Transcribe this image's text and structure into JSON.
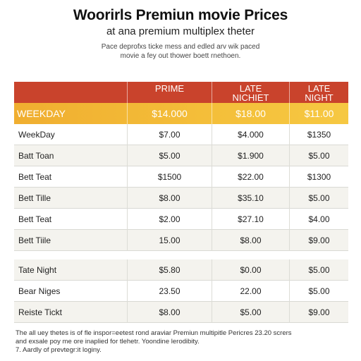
{
  "header": {
    "title": "Woorirls Premiun movie Prices",
    "subtitle": "at ana premium multiplex theter",
    "description": [
      "Pace deprofxs ticke mess and edled arv wik paced",
      "movie a fey out thower boett rnethoen."
    ]
  },
  "table": {
    "columns": [
      {
        "lines": [
          ""
        ]
      },
      {
        "lines": [
          "PRIME"
        ]
      },
      {
        "lines": [
          "LATE",
          "NICHIET"
        ]
      },
      {
        "lines": [
          "LATE",
          "NIGHT"
        ]
      }
    ],
    "weekday_row": {
      "label": "WEEKDAY",
      "values": [
        "$14.000",
        "$18.00",
        "$11.00"
      ]
    },
    "group1": [
      {
        "label": "WeekDay",
        "values": [
          "$7.00",
          "$4.000",
          "$1350"
        ]
      },
      {
        "label": "Batt Toan",
        "values": [
          "$5.00",
          "$1.900",
          "$5.00"
        ]
      },
      {
        "label": "Bett Teat",
        "values": [
          "$1500",
          "$22.00",
          "$1300"
        ]
      },
      {
        "label": "Bett Tille",
        "values": [
          "$8.00",
          "$35.10",
          "$5.00"
        ]
      },
      {
        "label": "Bett Teat",
        "values": [
          "$2.00",
          "$27.10",
          "$4.00"
        ]
      },
      {
        "label": "Bett Tiile",
        "values": [
          "15.00",
          "$8.00",
          "$9.00"
        ]
      }
    ],
    "group2": [
      {
        "label": "Tate Night",
        "values": [
          "$5.80",
          "$0.00",
          "$5.00"
        ]
      },
      {
        "label": "Bear Niges",
        "values": [
          "23.50",
          "22.00",
          "$5.00"
        ]
      },
      {
        "label": "Reiste Tickt",
        "values": [
          "$8.00",
          "$5.00",
          "$9.00"
        ]
      }
    ]
  },
  "footnote": [
    "The all uey thetes is of fle inspor=eetest rond araviar Premiun multipitle Pericres 23.20 scrers",
    "and exsale poy me ore inaplied for tlehetr. Yoondine lerodibity.",
    "7. Aardly of prevtegr:it loginy."
  ],
  "colors": {
    "header_band": "#c9432c",
    "weekday_band": "#f0ae30",
    "alt_row": "#f4f3ee"
  }
}
